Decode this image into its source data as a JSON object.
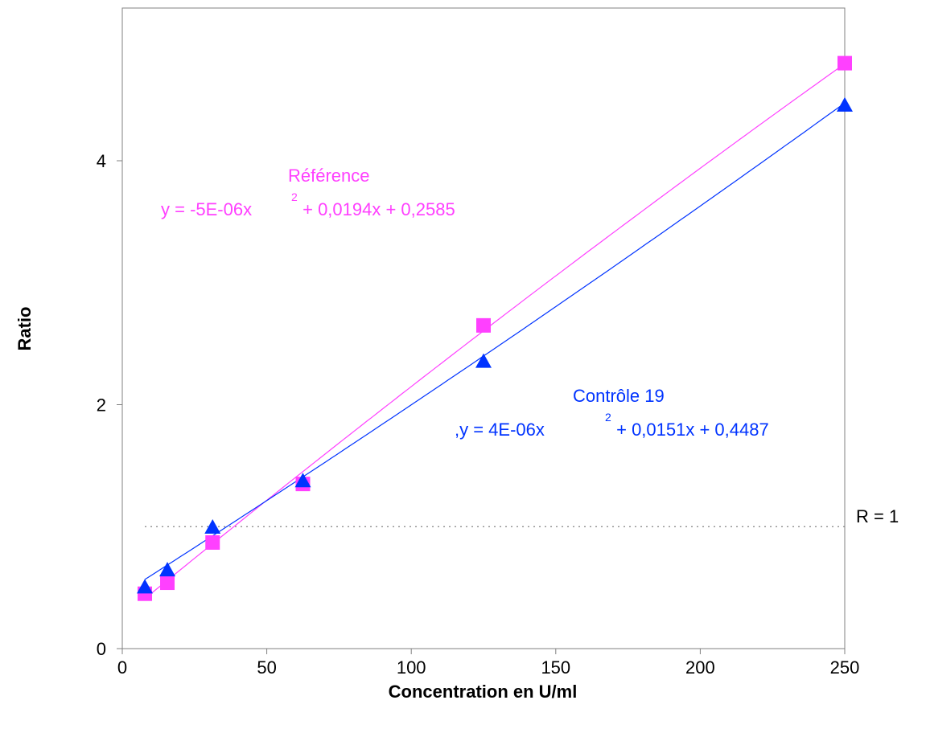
{
  "chart_data": {
    "type": "scatter",
    "xlabel": "Concentration en U/ml",
    "ylabel": "Ratio",
    "xlim": [
      0,
      250
    ],
    "ylim": [
      0,
      4
    ],
    "x_ticks": [
      "0",
      "50",
      "100",
      "150",
      "200",
      "250"
    ],
    "y_ticks": [
      "0",
      "2",
      "4"
    ],
    "grid": false,
    "reference_line": {
      "y": 1,
      "label": "R = 1",
      "style": "dotted",
      "color": "#808080"
    },
    "series": [
      {
        "name": "Référence",
        "marker": "square",
        "color": "#ff40ff",
        "line_color": "#ff40ff",
        "x": [
          7.8,
          15.6,
          31.25,
          62.5,
          125,
          250
        ],
        "y": [
          0.45,
          0.54,
          0.87,
          1.35,
          2.65,
          4.8
        ],
        "trend": {
          "a": -5e-06,
          "b": 0.0194,
          "c": 0.2585
        },
        "equation_prefix": "y = -5E-06x",
        "equation_exp": "2",
        "equation_suffix": " + 0,0194x + 0,2585"
      },
      {
        "name": "Contrôle 19",
        "marker": "triangle",
        "color": "#0033ff",
        "line_color": "#0033ff",
        "x": [
          7.8,
          15.6,
          31.25,
          62.5,
          125,
          250
        ],
        "y": [
          0.5,
          0.64,
          0.99,
          1.37,
          2.35,
          4.45
        ],
        "trend": {
          "a": 4e-06,
          "b": 0.0151,
          "c": 0.4487
        },
        "equation_prefix": ",y = 4E-06x",
        "equation_exp": "2",
        "equation_suffix": " + 0,0151x + 0,4487"
      }
    ]
  }
}
